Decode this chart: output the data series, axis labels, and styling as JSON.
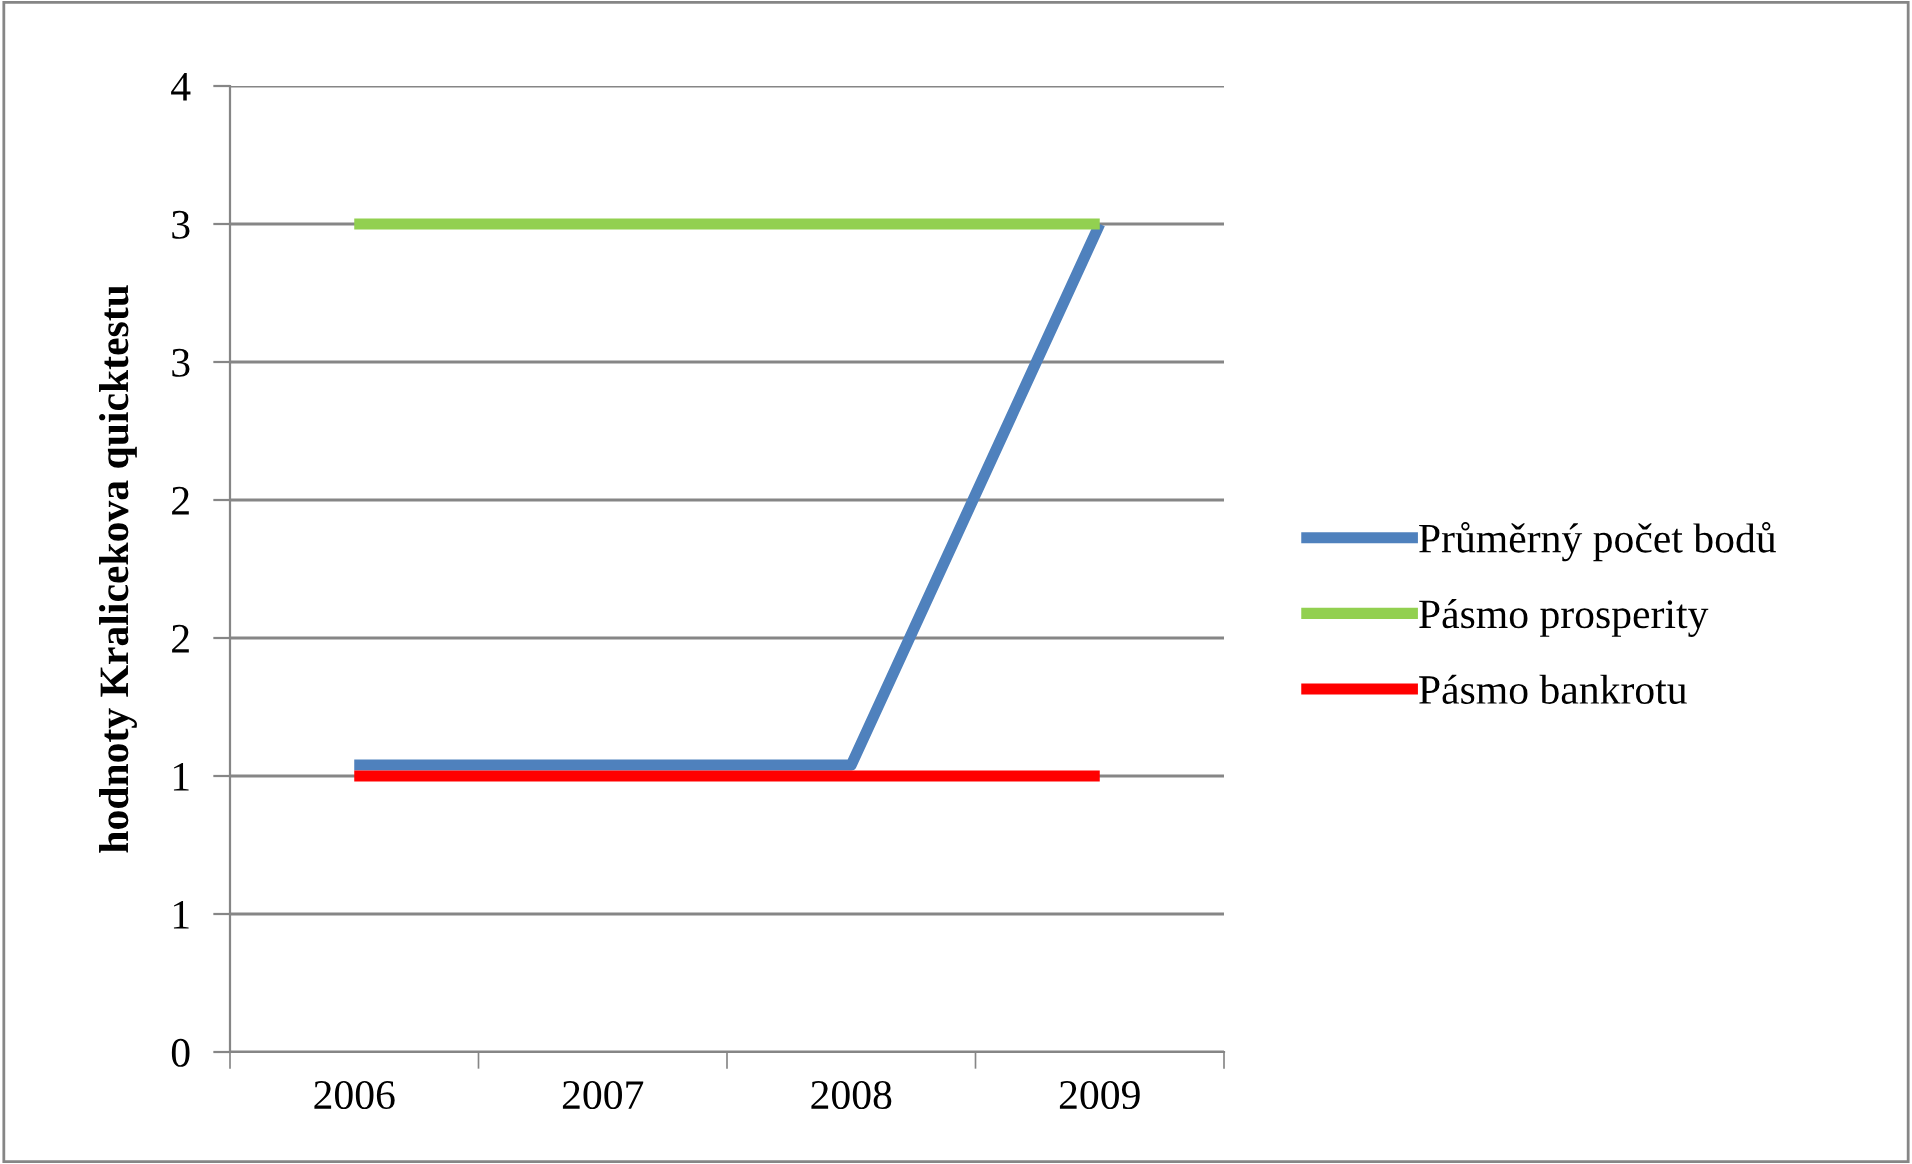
{
  "chart_data": {
    "type": "line",
    "ylabel": "hodnoty Kralicekova quicktestu",
    "categories": [
      "2006",
      "2007",
      "2008",
      "2009"
    ],
    "series": [
      {
        "name": "Průměrný počet bodů",
        "color": "#4f81bd",
        "values": [
          1.04,
          1.04,
          1.04,
          3.0
        ]
      },
      {
        "name": "Pásmo prosperity",
        "color": "#92d050",
        "values": [
          3.0,
          3.0,
          3.0,
          3.0
        ]
      },
      {
        "name": "Pásmo bankrotu",
        "color": "#ff0000",
        "values": [
          1.0,
          1.0,
          1.0,
          1.0
        ]
      }
    ],
    "ylim": [
      0,
      3.5
    ],
    "yticks": [
      0,
      {
        "value": 0.5,
        "label": "1"
      },
      1,
      {
        "value": 1.5,
        "label": "2"
      },
      2,
      {
        "value": 2.5,
        "label": "3"
      },
      3,
      {
        "value": 3.5,
        "label": "4"
      }
    ],
    "grid": "y",
    "legend": "right",
    "marker": "none",
    "line_style": "solid"
  }
}
